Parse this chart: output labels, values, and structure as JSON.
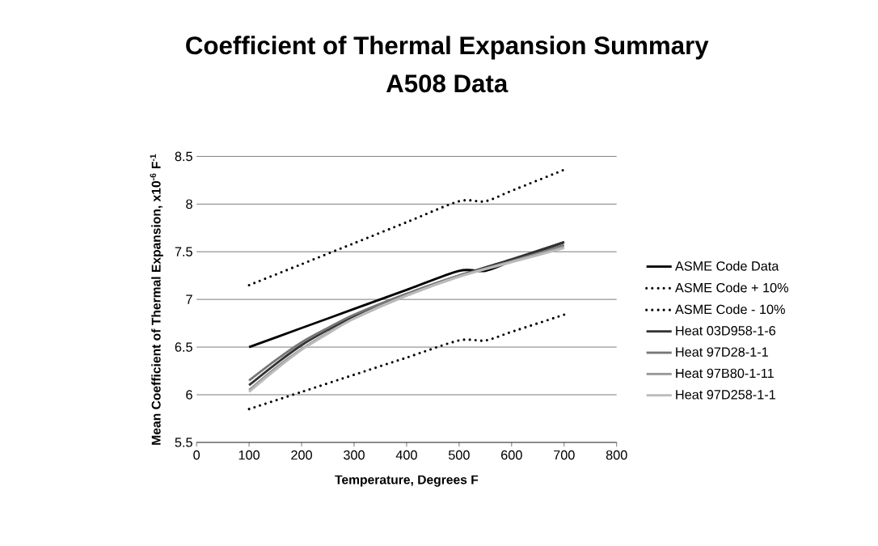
{
  "chart_data": {
    "type": "line",
    "title": "Coefficient of Thermal Expansion Summary",
    "subtitle": "A508 Data",
    "xlabel": "Temperature, Degrees F",
    "ylabel": "Mean Coefficient of Thermal Expansion, x10$^{-6}$ F$^{-1}$",
    "xlim": [
      0,
      800
    ],
    "xticks": [
      0,
      100,
      200,
      300,
      400,
      500,
      600,
      700,
      800
    ],
    "ylim": [
      5.5,
      8.5
    ],
    "yticks": [
      5.5,
      6,
      6.5,
      7,
      7.5,
      8,
      8.5
    ],
    "grid": "y",
    "legend": "right",
    "marker": "none",
    "series": [
      {
        "name": "ASME Code Data",
        "color": "#000000",
        "line_style": "solid",
        "x": [
          100,
          200,
          300,
          400,
          500,
          550,
          600,
          700
        ],
        "values": [
          6.5,
          6.7,
          6.9,
          7.1,
          7.3,
          7.3,
          7.4,
          7.6
        ]
      },
      {
        "name": "ASME Code + 10%",
        "color": "#000000",
        "line_style": "dotted",
        "x": [
          100,
          200,
          300,
          400,
          500,
          550,
          600,
          700
        ],
        "values": [
          7.15,
          7.37,
          7.59,
          7.81,
          8.03,
          8.03,
          8.14,
          8.36
        ]
      },
      {
        "name": "ASME Code - 10%",
        "color": "#000000",
        "line_style": "dotted",
        "x": [
          100,
          200,
          300,
          400,
          500,
          550,
          600,
          700
        ],
        "values": [
          5.85,
          6.03,
          6.21,
          6.39,
          6.57,
          6.57,
          6.66,
          6.84
        ]
      },
      {
        "name": "Heat 03D958-1-6",
        "color": "#333333",
        "line_style": "solid",
        "x": [
          100,
          150,
          200,
          250,
          300,
          400,
          500,
          600,
          700
        ],
        "values": [
          6.1,
          6.32,
          6.52,
          6.68,
          6.82,
          7.05,
          7.25,
          7.42,
          7.6
        ]
      },
      {
        "name": "Heat 97D28-1-1",
        "color": "#777777",
        "line_style": "solid",
        "x": [
          100,
          150,
          200,
          250,
          300,
          400,
          500,
          600,
          700
        ],
        "values": [
          6.15,
          6.36,
          6.55,
          6.7,
          6.84,
          7.06,
          7.25,
          7.4,
          7.57
        ]
      },
      {
        "name": "Heat 97B80-1-11",
        "color": "#999999",
        "line_style": "solid",
        "x": [
          100,
          150,
          200,
          250,
          300,
          400,
          500,
          600,
          700
        ],
        "values": [
          6.05,
          6.28,
          6.48,
          6.65,
          6.8,
          7.04,
          7.24,
          7.4,
          7.55
        ]
      },
      {
        "name": "Heat 97D258-1-1",
        "color": "#bbbbbb",
        "line_style": "solid",
        "x": [
          100,
          150,
          200,
          250,
          300,
          400,
          500,
          600,
          700
        ],
        "values": [
          6.03,
          6.26,
          6.47,
          6.64,
          6.8,
          7.04,
          7.24,
          7.39,
          7.54
        ]
      }
    ]
  }
}
